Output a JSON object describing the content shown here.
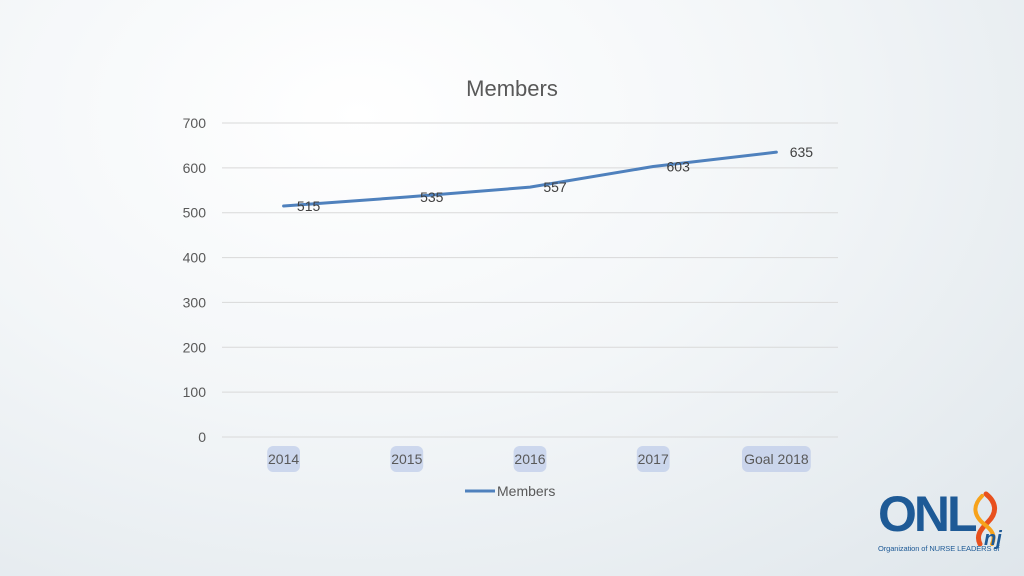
{
  "chart_data": {
    "type": "line",
    "title": "Members",
    "categories": [
      "2014",
      "2015",
      "2016",
      "2017",
      "Goal 2018"
    ],
    "series": [
      {
        "name": "Members",
        "values": [
          515,
          535,
          557,
          603,
          635
        ],
        "color": "#4f81bd"
      }
    ],
    "data_labels": [
      "515",
      "535",
      "557",
      "603",
      "635"
    ],
    "ylim": [
      0,
      700
    ],
    "yticks": [
      0,
      100,
      200,
      300,
      400,
      500,
      600,
      700
    ],
    "grid": true,
    "legend_position": "bottom"
  },
  "logo": {
    "text": "ONL",
    "suffix": "nj",
    "tagline": "Organization of NURSE LEADERS of",
    "color": "#1e5a96",
    "ribbon_colors": [
      "#e8501e",
      "#f7a21b"
    ]
  }
}
